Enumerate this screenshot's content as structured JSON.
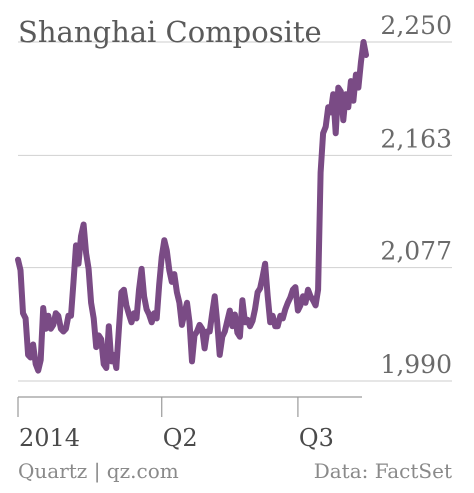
{
  "chart_data": {
    "type": "line",
    "title": "Shanghai Composite",
    "ylim": [
      1990,
      2250
    ],
    "yticks": [
      "2,250",
      "2,163",
      "2,077",
      "1,990"
    ],
    "ytick_values": [
      2250,
      2163,
      2077,
      1990
    ],
    "xticks": [
      "2014",
      "Q2",
      "Q3"
    ],
    "xtick_positions": [
      0,
      57,
      111
    ],
    "xlim": [
      0,
      138
    ],
    "grid": true,
    "legend": "none",
    "color": "#7a4b85",
    "series": [
      {
        "x": [
          0,
          1,
          2,
          3,
          4,
          5,
          6,
          7,
          8,
          9,
          10,
          11,
          12,
          13,
          14,
          15,
          16,
          17,
          18,
          19,
          20,
          21,
          22,
          23,
          24,
          25,
          26,
          27,
          28,
          29,
          30,
          31,
          32,
          33,
          34,
          35,
          36,
          37,
          38,
          39,
          40,
          41,
          42,
          43,
          44,
          45,
          46,
          47,
          48,
          49,
          50,
          51,
          52,
          53,
          54,
          55,
          56,
          57,
          58,
          59,
          60,
          61,
          62,
          63,
          64,
          65,
          66,
          67,
          68,
          69,
          70,
          71,
          72,
          73,
          74,
          75,
          76,
          77,
          78,
          79,
          80,
          81,
          82,
          83,
          84,
          85,
          86,
          87,
          88,
          89,
          90,
          91,
          92,
          93,
          94,
          95,
          96,
          97,
          98,
          99,
          100,
          101,
          102,
          103,
          104,
          105,
          106,
          107,
          108,
          109,
          110,
          111,
          112,
          113,
          114,
          115,
          116,
          117,
          118,
          119,
          120,
          121,
          122,
          123,
          124,
          125,
          126,
          127,
          128,
          129,
          130,
          131,
          132,
          133,
          134,
          135,
          136,
          137,
          138
        ],
        "values": [
          2083,
          2075,
          2042,
          2038,
          2010,
          2008,
          2018,
          2003,
          1998,
          2006,
          2046,
          2030,
          2040,
          2030,
          2033,
          2042,
          2040,
          2030,
          2028,
          2030,
          2040,
          2040,
          2066,
          2094,
          2080,
          2101,
          2110,
          2088,
          2076,
          2050,
          2038,
          2016,
          2025,
          2022,
          2003,
          2000,
          2032,
          2005,
          2010,
          2000,
          2030,
          2058,
          2060,
          2048,
          2041,
          2035,
          2042,
          2038,
          2060,
          2076,
          2055,
          2045,
          2041,
          2035,
          2042,
          2038,
          2064,
          2085,
          2098,
          2090,
          2075,
          2066,
          2072,
          2058,
          2050,
          2033,
          2042,
          2050,
          2035,
          2005,
          2025,
          2028,
          2033,
          2030,
          2015,
          2028,
          2028,
          2042,
          2055,
          2035,
          2010,
          2024,
          2028,
          2036,
          2044,
          2032,
          2041,
          2027,
          2024,
          2052,
          2035,
          2037,
          2032,
          2036,
          2045,
          2058,
          2061,
          2070,
          2080,
          2055,
          2035,
          2040,
          2032,
          2032,
          2040,
          2038,
          2045,
          2050,
          2054,
          2060,
          2062,
          2044,
          2048,
          2055,
          2050,
          2060,
          2055,
          2052,
          2048,
          2060,
          2150,
          2180,
          2185,
          2200,
          2196,
          2210,
          2180,
          2215,
          2212,
          2190,
          2210,
          2200,
          2220,
          2205,
          2225,
          2215,
          2235,
          2250,
          2240
        ]
      }
    ]
  },
  "footer": {
    "source_left": "Quartz | qz.com",
    "source_right": "Data: FactSet"
  }
}
